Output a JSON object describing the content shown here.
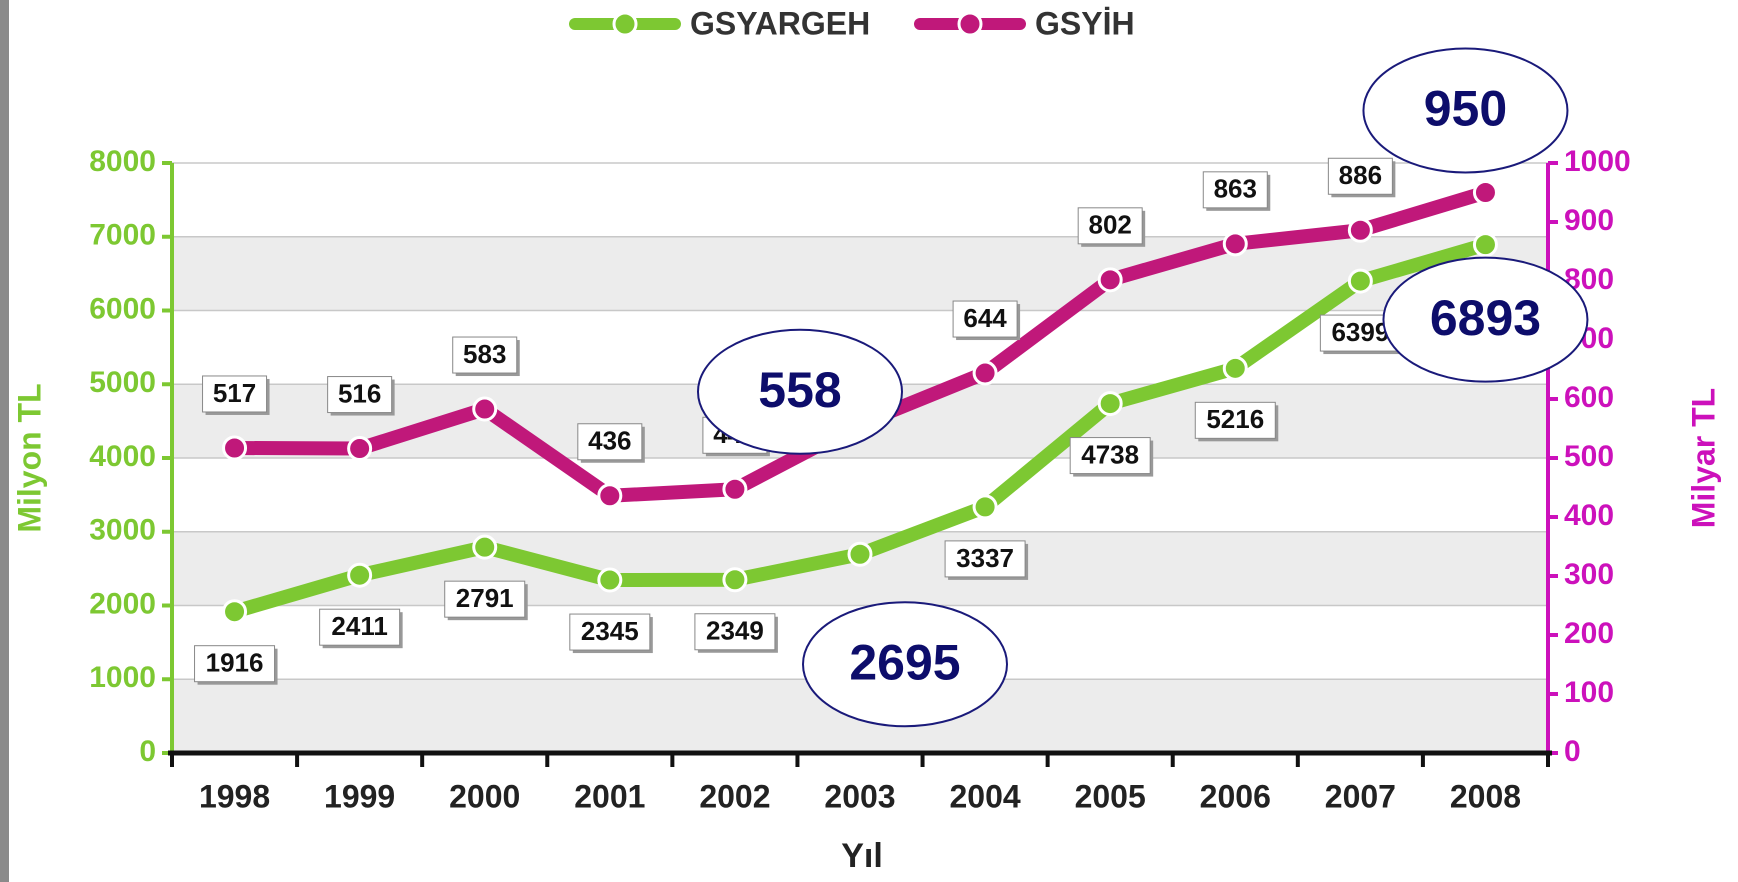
{
  "chart_data": {
    "type": "line",
    "categories": [
      "1998",
      "1999",
      "2000",
      "2001",
      "2002",
      "2003",
      "2004",
      "2005",
      "2006",
      "2007",
      "2008"
    ],
    "x_label": "Yıl",
    "y_label": "Milyon TL",
    "y2_label": "Milyar TL",
    "ylim": [
      0,
      8000
    ],
    "yticks": [
      0,
      1000,
      2000,
      3000,
      4000,
      5000,
      6000,
      7000,
      8000
    ],
    "y2lim": [
      0,
      1000
    ],
    "y2ticks": [
      0,
      100,
      200,
      300,
      400,
      500,
      600,
      700,
      800,
      900,
      1000
    ],
    "grid": true,
    "legend": "top",
    "series": [
      {
        "name": "GSYARGEH",
        "color": "#7dc832",
        "values": [
          1916,
          2411,
          2791,
          2345,
          2349,
          2695,
          3337,
          4738,
          5216,
          6399,
          6893
        ]
      },
      {
        "name": "GSYİH",
        "color": "#c0187a",
        "axis": "y2",
        "values": [
          517,
          516,
          583,
          436,
          447,
          558,
          644,
          802,
          863,
          886,
          950
        ]
      }
    ]
  }
}
